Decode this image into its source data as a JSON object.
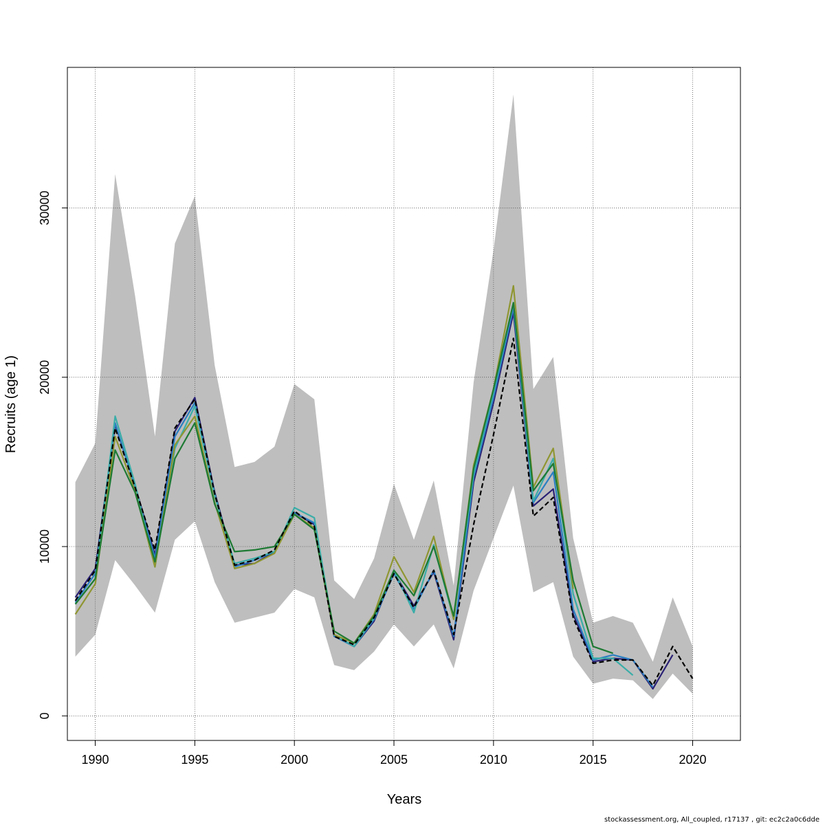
{
  "chart_data": {
    "type": "line",
    "xlabel": "Years",
    "ylabel": "Recruits (age 1)",
    "xlim": [
      1988.6,
      2022.4
    ],
    "ylim": [
      -1450,
      38300
    ],
    "x_ticks": [
      1990,
      1995,
      2000,
      2005,
      2010,
      2015,
      2020
    ],
    "y_ticks": [
      0,
      10000,
      20000,
      30000
    ],
    "x_tick_labels": [
      "1990",
      "1995",
      "2000",
      "2005",
      "2010",
      "2015",
      "2020"
    ],
    "y_tick_labels": [
      "0",
      "10000",
      "20000",
      "30000"
    ],
    "grid": true,
    "band": {
      "color": "#bebebe",
      "x": [
        1989,
        1990,
        1991,
        1992,
        1993,
        1994,
        1995,
        1996,
        1997,
        1998,
        1999,
        2000,
        2001,
        2002,
        2003,
        2004,
        2005,
        2006,
        2007,
        2008,
        2009,
        2010,
        2011,
        2012,
        2013,
        2014,
        2015,
        2016,
        2017,
        2018,
        2019,
        2020
      ],
      "upper": [
        13800,
        16100,
        32000,
        24800,
        16500,
        27900,
        30700,
        20700,
        14700,
        15000,
        15900,
        19600,
        18700,
        8000,
        6900,
        9300,
        13700,
        10400,
        13900,
        7700,
        19700,
        27500,
        36700,
        19300,
        21200,
        10500,
        5500,
        5900,
        5500,
        3200,
        7000,
        4100
      ],
      "lower": [
        3500,
        4800,
        9200,
        7700,
        6100,
        10400,
        11500,
        7900,
        5500,
        5800,
        6100,
        7500,
        7000,
        3000,
        2700,
        3800,
        5400,
        4100,
        5400,
        2800,
        7400,
        10500,
        13600,
        7300,
        7900,
        3500,
        1900,
        2200,
        2100,
        1000,
        2500,
        1300
      ]
    },
    "series": [
      {
        "color": "#2a2175",
        "dashed": false,
        "x": [
          1989,
          1990,
          1991,
          1992,
          1993,
          1994,
          1995,
          1996,
          1997,
          1998,
          1999,
          2000,
          2001,
          2002,
          2003,
          2004,
          2005,
          2006,
          2007,
          2008,
          2009,
          2010,
          2011,
          2012,
          2013,
          2014,
          2015,
          2016,
          2017,
          2018,
          2019
        ],
        "values": [
          7000,
          8700,
          17200,
          13600,
          9500,
          16800,
          18800,
          13200,
          8900,
          9000,
          9700,
          12000,
          11300,
          4700,
          4100,
          5600,
          8500,
          6500,
          8500,
          4500,
          13800,
          18500,
          23800,
          12400,
          13400,
          6000,
          3200,
          3400,
          3300,
          1600,
          3600
        ]
      },
      {
        "color": "#2b7fc2",
        "dashed": false,
        "x": [
          1989,
          1990,
          1991,
          1992,
          1993,
          1994,
          1995,
          1996,
          1997,
          1998,
          1999,
          2000,
          2001,
          2002,
          2003,
          2004,
          2005,
          2006,
          2007,
          2008,
          2009,
          2010,
          2011,
          2012,
          2013,
          2014,
          2015,
          2016,
          2017,
          2018
        ],
        "values": [
          6700,
          8400,
          17300,
          13500,
          9300,
          16500,
          18500,
          13100,
          8800,
          9200,
          9700,
          12000,
          11400,
          4700,
          4100,
          5700,
          8400,
          6300,
          8600,
          4700,
          14100,
          18800,
          24100,
          12600,
          14400,
          6300,
          3300,
          3600,
          3300,
          1700
        ]
      },
      {
        "color": "#3aada8",
        "dashed": false,
        "x": [
          1989,
          1990,
          1991,
          1992,
          1993,
          1994,
          1995,
          1996,
          1997,
          1998,
          1999,
          2000,
          2001,
          2002,
          2003,
          2004,
          2005,
          2006,
          2007,
          2008,
          2009,
          2010,
          2011,
          2012,
          2013,
          2014,
          2015,
          2016,
          2017
        ],
        "values": [
          6600,
          8100,
          17700,
          13700,
          8800,
          15800,
          18300,
          13000,
          9000,
          9300,
          9700,
          12300,
          11700,
          4800,
          4100,
          5800,
          8600,
          6100,
          10100,
          5700,
          14300,
          19100,
          24400,
          12700,
          15200,
          7200,
          3400,
          3400,
          2400
        ]
      },
      {
        "color": "#8f9631",
        "dashed": false,
        "x": [
          1989,
          1990,
          1991,
          1992,
          1993,
          1994,
          1995,
          1996,
          1997,
          1998,
          1999,
          2000,
          2001,
          2002,
          2003,
          2004,
          2005,
          2006,
          2007,
          2008,
          2009,
          2010,
          2011,
          2012,
          2013,
          2014
        ],
        "values": [
          6000,
          7800,
          16500,
          13300,
          8800,
          16000,
          17700,
          12600,
          8700,
          9000,
          9600,
          11900,
          11100,
          4800,
          4300,
          6000,
          9400,
          7300,
          10600,
          5700,
          14800,
          19300,
          25400,
          13500,
          15800,
          7500
        ]
      },
      {
        "color": "#1e7a33",
        "dashed": false,
        "x": [
          1989,
          1990,
          1991,
          1992,
          1993,
          1994,
          1995,
          1996,
          1997,
          1998,
          1999,
          2000,
          2001,
          2002,
          2003,
          2004,
          2005,
          2006,
          2007,
          2008,
          2009,
          2010,
          2011,
          2012,
          2013,
          2014,
          2015,
          2016
        ],
        "values": [
          6600,
          8100,
          15700,
          13200,
          9100,
          15200,
          17300,
          12500,
          9700,
          9800,
          10000,
          11900,
          11000,
          5000,
          4300,
          5900,
          8600,
          7100,
          10000,
          5900,
          14600,
          19300,
          24400,
          13300,
          14900,
          8000,
          4100,
          3700
        ]
      },
      {
        "color": "#000000",
        "dashed": true,
        "x": [
          1989,
          1990,
          1991,
          1992,
          1993,
          1994,
          1995,
          1996,
          1997,
          1998,
          1999,
          2000,
          2001,
          2002,
          2003,
          2004,
          2005,
          2006,
          2007,
          2008,
          2009,
          2010,
          2011,
          2012,
          2013,
          2014,
          2015,
          2016,
          2017,
          2018,
          2019,
          2020
        ],
        "values": [
          6800,
          8600,
          17000,
          13500,
          9800,
          17000,
          18700,
          13100,
          8900,
          9200,
          9800,
          12100,
          11200,
          4700,
          4200,
          5800,
          8400,
          6400,
          8600,
          4800,
          11300,
          16600,
          22300,
          11800,
          12900,
          5800,
          3100,
          3300,
          3300,
          1800,
          4100,
          2200
        ]
      }
    ]
  },
  "footer": {
    "text": "stockassessment.org, All_coupled, r17137 , git: ec2c2a0c6dde"
  }
}
